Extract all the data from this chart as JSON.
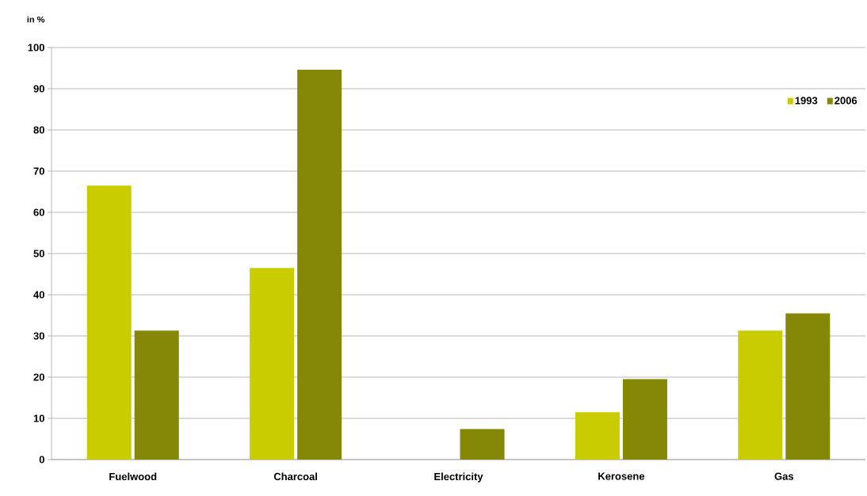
{
  "chart_data": {
    "type": "bar",
    "ylabel": "in %",
    "categories": [
      "Fuelwood",
      "Charcoal",
      "Electricity",
      "Kerosene",
      "Gas"
    ],
    "series": [
      {
        "name": "1993",
        "color": "#c8cc00",
        "values": [
          66.5,
          46.5,
          null,
          11.5,
          31.3
        ]
      },
      {
        "name": "2006",
        "color": "#848806",
        "values": [
          31.3,
          94.6,
          7.4,
          19.5,
          35.5
        ]
      }
    ],
    "ylim": [
      0,
      100
    ],
    "yticks": [
      0,
      10,
      20,
      30,
      40,
      50,
      60,
      70,
      80,
      90,
      100
    ],
    "grid": "y",
    "legend": "top right"
  }
}
